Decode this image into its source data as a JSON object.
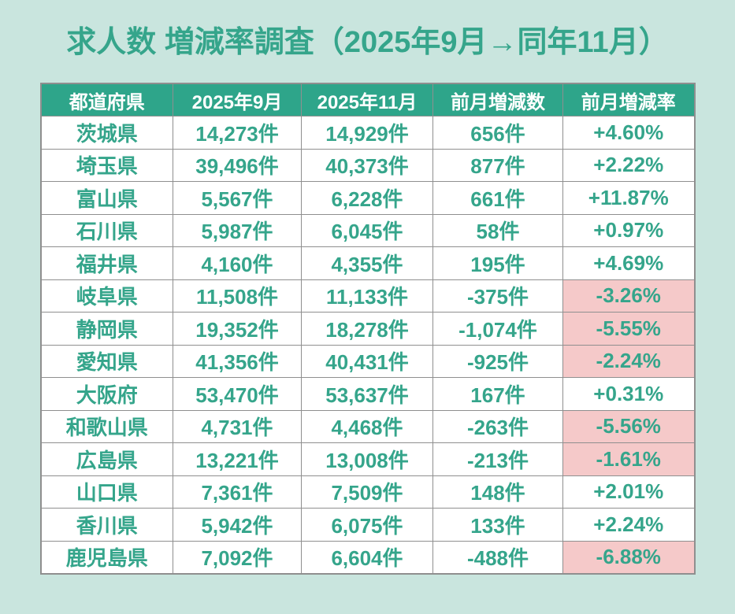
{
  "title": "求人数 増減率調査（2025年9月→同年11月）",
  "colors": {
    "background": "#c9e5de",
    "header_bg": "#2ea58a",
    "header_text": "#ffffff",
    "accent_teal": "#35a58b",
    "negative_bg": "#f5c9c9",
    "grid": "#8f8f8f",
    "cell_bg": "#ffffff"
  },
  "table": {
    "columns": [
      "都道府県",
      "2025年9月",
      "2025年11月",
      "前月増減数",
      "前月増減率"
    ],
    "rows": [
      {
        "prefecture": "茨城県",
        "sep": "14,273件",
        "nov": "14,929件",
        "diff": "656件",
        "rate": "+4.60%",
        "negative": false
      },
      {
        "prefecture": "埼玉県",
        "sep": "39,496件",
        "nov": "40,373件",
        "diff": "877件",
        "rate": "+2.22%",
        "negative": false
      },
      {
        "prefecture": "富山県",
        "sep": "5,567件",
        "nov": "6,228件",
        "diff": "661件",
        "rate": "+11.87%",
        "negative": false
      },
      {
        "prefecture": "石川県",
        "sep": "5,987件",
        "nov": "6,045件",
        "diff": "58件",
        "rate": "+0.97%",
        "negative": false
      },
      {
        "prefecture": "福井県",
        "sep": "4,160件",
        "nov": "4,355件",
        "diff": "195件",
        "rate": "+4.69%",
        "negative": false
      },
      {
        "prefecture": "岐阜県",
        "sep": "11,508件",
        "nov": "11,133件",
        "diff": "-375件",
        "rate": "-3.26%",
        "negative": true
      },
      {
        "prefecture": "静岡県",
        "sep": "19,352件",
        "nov": "18,278件",
        "diff": "-1,074件",
        "rate": "-5.55%",
        "negative": true
      },
      {
        "prefecture": "愛知県",
        "sep": "41,356件",
        "nov": "40,431件",
        "diff": "-925件",
        "rate": "-2.24%",
        "negative": true
      },
      {
        "prefecture": "大阪府",
        "sep": "53,470件",
        "nov": "53,637件",
        "diff": "167件",
        "rate": "+0.31%",
        "negative": false
      },
      {
        "prefecture": "和歌山県",
        "sep": "4,731件",
        "nov": "4,468件",
        "diff": "-263件",
        "rate": "-5.56%",
        "negative": true
      },
      {
        "prefecture": "広島県",
        "sep": "13,221件",
        "nov": "13,008件",
        "diff": "-213件",
        "rate": "-1.61%",
        "negative": true
      },
      {
        "prefecture": "山口県",
        "sep": "7,361件",
        "nov": "7,509件",
        "diff": "148件",
        "rate": "+2.01%",
        "negative": false
      },
      {
        "prefecture": "香川県",
        "sep": "5,942件",
        "nov": "6,075件",
        "diff": "133件",
        "rate": "+2.24%",
        "negative": false
      },
      {
        "prefecture": "鹿児島県",
        "sep": "7,092件",
        "nov": "6,604件",
        "diff": "-488件",
        "rate": "-6.88%",
        "negative": true
      }
    ]
  },
  "chart_data": {
    "type": "table",
    "title": "求人数 増減率調査（2025年9月→同年11月）",
    "columns": [
      "都道府県",
      "2025年9月",
      "2025年11月",
      "前月増減数",
      "前月増減率"
    ],
    "unit": "件",
    "row_format": [
      "prefecture",
      "jobs_2025_09",
      "jobs_2025_11",
      "change_count",
      "change_rate_pct"
    ],
    "rows": [
      [
        "茨城県",
        14273,
        14929,
        656,
        4.6
      ],
      [
        "埼玉県",
        39496,
        40373,
        877,
        2.22
      ],
      [
        "富山県",
        5567,
        6228,
        661,
        11.87
      ],
      [
        "石川県",
        5987,
        6045,
        58,
        0.97
      ],
      [
        "福井県",
        4160,
        4355,
        195,
        4.69
      ],
      [
        "岐阜県",
        11508,
        11133,
        -375,
        -3.26
      ],
      [
        "静岡県",
        19352,
        18278,
        -1074,
        -5.55
      ],
      [
        "愛知県",
        41356,
        40431,
        -925,
        -2.24
      ],
      [
        "大阪府",
        53470,
        53637,
        167,
        0.31
      ],
      [
        "和歌山県",
        4731,
        4468,
        -263,
        -5.56
      ],
      [
        "広島県",
        13221,
        13008,
        -213,
        -1.61
      ],
      [
        "山口県",
        7361,
        7509,
        148,
        2.01
      ],
      [
        "香川県",
        5942,
        6075,
        133,
        2.24
      ],
      [
        "鹿児島県",
        7092,
        6604,
        -488,
        -6.88
      ]
    ],
    "highlight_rule": "change_rate_pct < 0 → pink cell background in 前月増減率 column",
    "negative_rows": [
      "岐阜県",
      "静岡県",
      "愛知県",
      "和歌山県",
      "広島県",
      "鹿児島県"
    ]
  }
}
